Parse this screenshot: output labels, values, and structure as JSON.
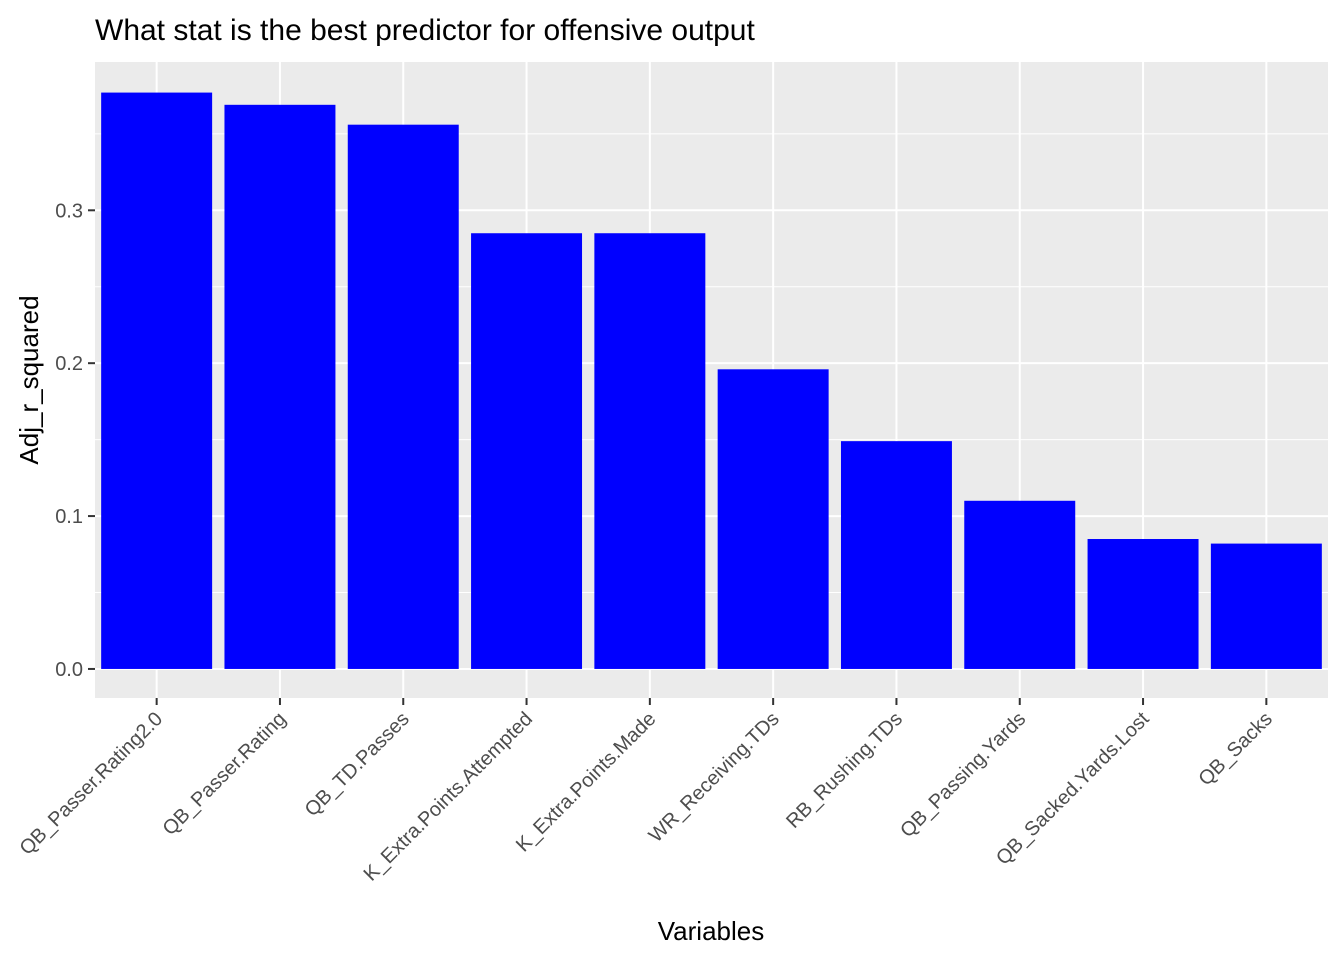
{
  "chart_data": {
    "type": "bar",
    "title": "What stat is the best predictor for offensive output",
    "xlabel": "Variables",
    "ylabel": "Adj_r_squared",
    "categories": [
      "QB_Passer.Rating2.0",
      "QB_Passer.Rating",
      "QB_TD.Passes",
      "K_Extra.Points.Attempted",
      "K_Extra.Points.Made",
      "WR_Receiving.TDs",
      "RB_Rushing.TDs",
      "QB_Passing.Yards",
      "QB_Sacked.Yards.Lost",
      "QB_Sacks"
    ],
    "values": [
      0.377,
      0.369,
      0.356,
      0.285,
      0.285,
      0.196,
      0.149,
      0.11,
      0.085,
      0.082
    ],
    "ylim": [
      -0.019,
      0.397
    ],
    "yticks": [
      0.0,
      0.1,
      0.2,
      0.3
    ],
    "ytick_labels": [
      "0.0",
      "0.1",
      "0.2",
      "0.3"
    ],
    "bar_color": "#0000FF",
    "panel_background": "#EBEBEB",
    "grid_color": "#FFFFFF",
    "grid": true,
    "legend": "none"
  }
}
